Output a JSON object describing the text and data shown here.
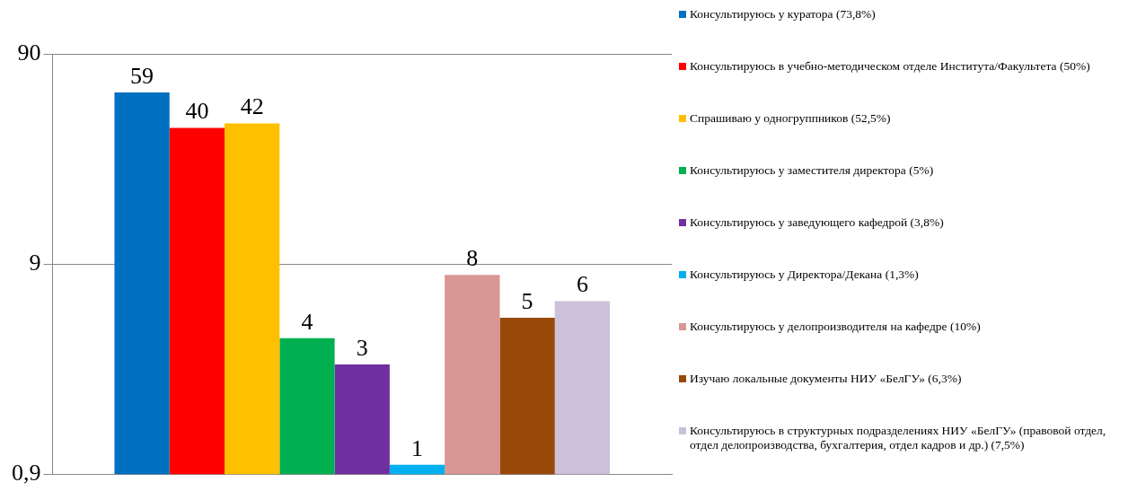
{
  "chart_data": {
    "type": "bar",
    "categories": [
      null
    ],
    "series": [
      {
        "name": "Консультируюсь у куратора (73,8%)",
        "color": "#0070c0",
        "values": [
          59
        ]
      },
      {
        "name": "Консультируюсь в учебно-методическом отделе Института/Факультета (50%)",
        "color": "#ff0000",
        "values": [
          40
        ]
      },
      {
        "name": "Спрашиваю у одногруппников (52,5%)",
        "color": "#ffc000",
        "values": [
          42
        ]
      },
      {
        "name": "Консультируюсь у заместителя директора (5%)",
        "color": "#00b050",
        "values": [
          4
        ]
      },
      {
        "name": "Консультируюсь у заведующего кафедрой (3,8%)",
        "color": "#7030a0",
        "values": [
          3
        ]
      },
      {
        "name": "Консультируюсь у Директора/Декана (1,3%)",
        "color": "#00b0f0",
        "values": [
          1
        ]
      },
      {
        "name": "Консультируюсь у делопроизводителя на кафедре (10%)",
        "color": "#d99694",
        "values": [
          8
        ]
      },
      {
        "name": "Изучаю локальные документы НИУ «БелГУ» (6,3%)",
        "color": "#984807",
        "values": [
          5
        ]
      },
      {
        "name": "Консультируюсь в структурных подразделениях НИУ «БелГУ» (правовой отдел, отдел делопроизводства, бухгалтерия, отдел кадров и др.) (7,5%)",
        "color": "#ccc1da",
        "values": [
          6
        ]
      }
    ],
    "log": "y",
    "ylim": [
      0.9,
      90
    ],
    "yticks": [
      {
        "value": 0.9,
        "label": "0,9"
      },
      9,
      90
    ],
    "grid": "y",
    "data_labels": true,
    "legend": "right",
    "tick_labels": "y"
  }
}
